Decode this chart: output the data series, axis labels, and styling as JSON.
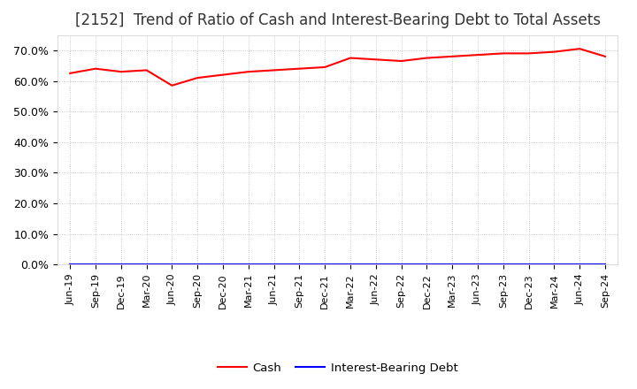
{
  "title": "[2152]  Trend of Ratio of Cash and Interest-Bearing Debt to Total Assets",
  "x_labels": [
    "Jun-19",
    "Sep-19",
    "Dec-19",
    "Mar-20",
    "Jun-20",
    "Sep-20",
    "Dec-20",
    "Mar-21",
    "Jun-21",
    "Sep-21",
    "Dec-21",
    "Mar-22",
    "Jun-22",
    "Sep-22",
    "Dec-22",
    "Mar-23",
    "Jun-23",
    "Sep-23",
    "Dec-23",
    "Mar-24",
    "Jun-24",
    "Sep-24"
  ],
  "cash_values": [
    62.5,
    64.0,
    63.0,
    63.5,
    58.5,
    61.0,
    62.0,
    63.0,
    63.5,
    64.0,
    64.5,
    67.5,
    67.0,
    66.5,
    67.5,
    68.0,
    68.5,
    69.0,
    69.0,
    69.5,
    70.5,
    68.0
  ],
  "interest_bearing_debt_values": [
    0.0,
    0.0,
    0.0,
    0.0,
    0.0,
    0.0,
    0.0,
    0.0,
    0.0,
    0.0,
    0.0,
    0.0,
    0.0,
    0.0,
    0.0,
    0.0,
    0.0,
    0.0,
    0.0,
    0.0,
    0.0,
    0.0
  ],
  "cash_color": "#ff0000",
  "interest_bearing_debt_color": "#0000ff",
  "ylim": [
    0,
    75
  ],
  "yticks": [
    0,
    10,
    20,
    30,
    40,
    50,
    60,
    70
  ],
  "ytick_labels": [
    "0.0%",
    "10.0%",
    "20.0%",
    "30.0%",
    "40.0%",
    "50.0%",
    "60.0%",
    "70.0%"
  ],
  "background_color": "#ffffff",
  "plot_bg_color": "#ffffff",
  "grid_color": "#bbbbbb",
  "title_fontsize": 12,
  "tick_fontsize": 9,
  "legend_labels": [
    "Cash",
    "Interest-Bearing Debt"
  ],
  "line_width": 1.5
}
